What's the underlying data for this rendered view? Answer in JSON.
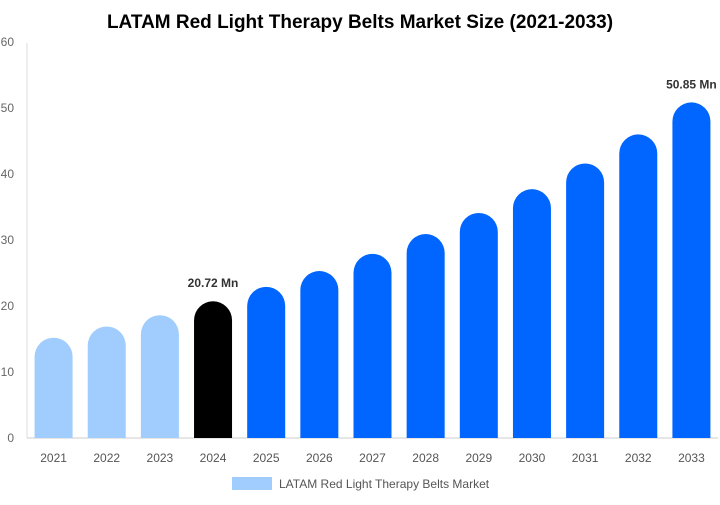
{
  "chart_data": {
    "type": "bar",
    "title": "LATAM Red Light Therapy Belts Market Size (2021-2033)",
    "categories": [
      "2021",
      "2022",
      "2023",
      "2024",
      "2025",
      "2026",
      "2027",
      "2028",
      "2029",
      "2030",
      "2031",
      "2032",
      "2033"
    ],
    "series": [
      {
        "name": "LATAM Red Light Therapy Belts Market",
        "values": [
          15.2,
          16.9,
          18.6,
          20.72,
          22.9,
          25.3,
          27.9,
          30.9,
          34.1,
          37.7,
          41.6,
          46.0,
          50.85
        ]
      }
    ],
    "data_labels": {
      "3": "20.72 Mn",
      "12": "50.85 Mn"
    },
    "ylim": [
      0,
      60
    ],
    "yticks": [
      0,
      10,
      20,
      30,
      40,
      50,
      60
    ],
    "grid": false,
    "legend_position": "bottom",
    "colors": {
      "historical": "#a0cdfd",
      "current": "#000000",
      "forecast": "#0066ff",
      "legend": "#a0cdfd"
    }
  }
}
